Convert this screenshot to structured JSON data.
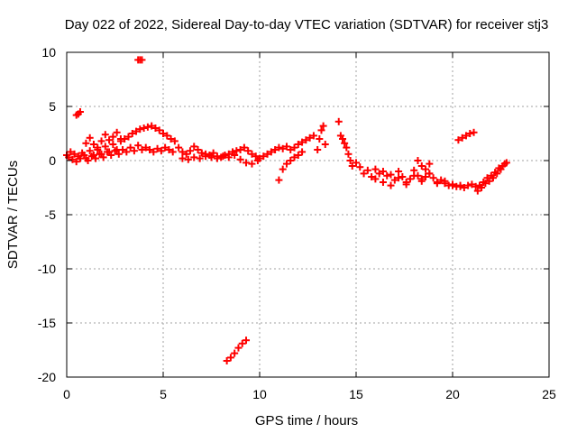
{
  "chart_data": {
    "type": "scatter",
    "title": "Day 022 of 2022, Sidereal Day-to-day VTEC variation (SDTVAR) for receiver stj3",
    "xlabel": "GPS time / hours",
    "ylabel": "SDTVAR / TECUs",
    "xlim": [
      0,
      25
    ],
    "ylim": [
      -20,
      10
    ],
    "xticks": [
      "0",
      "5",
      "10",
      "15",
      "20",
      "25"
    ],
    "yticks": [
      "10",
      "5",
      "0",
      "-5",
      "-10",
      "-15",
      "-20"
    ],
    "grid": true,
    "marker": "plus",
    "color": "#ff0000",
    "series": [
      {
        "name": "SDTVAR",
        "x": [
          0.0,
          0.2,
          0.4,
          0.6,
          0.8,
          1.0,
          1.2,
          1.4,
          1.6,
          1.8,
          2.0,
          2.2,
          2.4,
          2.6,
          2.8,
          3.0,
          3.2,
          3.4,
          3.6,
          3.8,
          4.0,
          4.2,
          4.4,
          4.6,
          4.8,
          5.0,
          5.2,
          5.4,
          5.6,
          0.1,
          0.3,
          0.5,
          0.7,
          0.9,
          1.1,
          1.3,
          1.5,
          1.7,
          1.9,
          2.1,
          2.3,
          2.5,
          2.7,
          2.9,
          3.1,
          3.3,
          3.5,
          3.7,
          3.9,
          4.1,
          4.3,
          4.5,
          4.7,
          4.9,
          5.1,
          5.3,
          5.5,
          1.0,
          1.2,
          1.4,
          1.6,
          1.8,
          2.0,
          2.2,
          2.4,
          2.6,
          2.8,
          0.5,
          0.6,
          0.7,
          3.7,
          3.8,
          3.9,
          5.8,
          6.0,
          6.2,
          6.4,
          6.6,
          6.8,
          7.0,
          7.2,
          7.4,
          7.6,
          7.8,
          8.0,
          8.2,
          8.4,
          8.6,
          8.8,
          9.0,
          9.2,
          9.4,
          9.6,
          9.8,
          10.0,
          6.0,
          6.3,
          6.6,
          6.9,
          7.2,
          7.5,
          7.8,
          8.1,
          8.4,
          8.7,
          9.0,
          9.3,
          9.6,
          9.9,
          8.3,
          8.5,
          8.7,
          8.9,
          9.1,
          9.3,
          10.2,
          10.4,
          10.6,
          10.8,
          11.0,
          11.2,
          11.4,
          11.6,
          11.8,
          12.0,
          12.2,
          12.4,
          12.6,
          12.8,
          11.0,
          11.2,
          11.4,
          11.6,
          11.8,
          12.0,
          12.2,
          13.0,
          13.1,
          13.2,
          13.3,
          13.4,
          14.1,
          14.2,
          14.3,
          14.4,
          14.5,
          14.6,
          14.7,
          14.8,
          15.0,
          15.2,
          15.4,
          15.6,
          15.8,
          16.0,
          16.2,
          16.4,
          16.6,
          16.8,
          17.0,
          17.2,
          17.4,
          17.6,
          17.8,
          18.0,
          18.2,
          18.4,
          18.6,
          18.8,
          19.0,
          19.2,
          19.4,
          19.6,
          19.8,
          20.0,
          20.2,
          20.4,
          20.6,
          20.8,
          21.0,
          21.2,
          16.0,
          16.4,
          16.8,
          17.2,
          17.6,
          18.0,
          18.4,
          18.8,
          19.2,
          19.6,
          20.0,
          20.4,
          18.2,
          18.4,
          18.6,
          18.8,
          20.3,
          20.5,
          20.7,
          20.9,
          21.1,
          21.3,
          21.5,
          21.7,
          21.9,
          22.1,
          22.3,
          22.5,
          22.7,
          21.4,
          21.6,
          21.8,
          22.0,
          22.2,
          22.4,
          22.6,
          22.8
        ],
        "y": [
          0.5,
          0.8,
          0.6,
          0.4,
          0.7,
          0.2,
          0.9,
          0.5,
          1.0,
          0.6,
          1.3,
          0.8,
          1.5,
          1.0,
          1.8,
          2.0,
          2.2,
          2.5,
          2.7,
          2.9,
          3.0,
          3.1,
          3.2,
          3.0,
          2.8,
          2.5,
          2.3,
          2.0,
          1.8,
          0.3,
          0.1,
          -0.1,
          0.2,
          0.5,
          0.0,
          0.4,
          0.2,
          0.6,
          0.3,
          0.8,
          0.5,
          0.9,
          0.6,
          1.0,
          0.8,
          1.2,
          0.9,
          1.4,
          1.0,
          1.2,
          1.0,
          0.8,
          1.1,
          0.9,
          1.2,
          1.0,
          0.8,
          1.6,
          2.1,
          1.5,
          1.2,
          1.8,
          2.4,
          1.9,
          2.2,
          2.6,
          2.0,
          4.2,
          4.3,
          4.5,
          9.3,
          9.3,
          9.3,
          1.2,
          0.8,
          0.6,
          0.9,
          1.3,
          1.0,
          0.7,
          0.6,
          0.5,
          0.7,
          0.4,
          0.3,
          0.5,
          0.6,
          0.8,
          0.9,
          1.0,
          1.2,
          0.9,
          0.6,
          0.4,
          0.2,
          0.2,
          0.1,
          0.3,
          0.2,
          0.4,
          0.3,
          0.2,
          0.4,
          0.3,
          0.5,
          0.1,
          -0.2,
          -0.3,
          0.0,
          -18.5,
          -18.2,
          -17.8,
          -17.3,
          -16.9,
          -16.6,
          0.4,
          0.6,
          0.8,
          1.0,
          1.2,
          1.1,
          1.3,
          1.0,
          1.2,
          1.5,
          1.7,
          1.9,
          2.1,
          2.3,
          -1.8,
          -0.8,
          -0.3,
          0.0,
          0.3,
          0.5,
          0.8,
          1.0,
          2.0,
          2.8,
          3.2,
          1.5,
          3.6,
          2.3,
          2.0,
          1.6,
          1.2,
          0.6,
          0.0,
          -0.5,
          -0.2,
          -0.6,
          -1.2,
          -0.9,
          -1.5,
          -1.7,
          -1.2,
          -2.0,
          -1.4,
          -2.3,
          -1.8,
          -1.0,
          -1.5,
          -2.2,
          -1.7,
          -0.9,
          -1.4,
          -1.9,
          -1.5,
          -1.2,
          -1.6,
          -2.0,
          -1.8,
          -2.1,
          -2.3,
          -2.2,
          -2.4,
          -2.3,
          -2.5,
          -2.3,
          -2.2,
          -2.4,
          -0.8,
          -1.0,
          -1.3,
          -1.6,
          -2.0,
          -1.4,
          -1.7,
          -1.2,
          -2.1,
          -1.9,
          -2.3,
          -2.4,
          0.0,
          -0.5,
          -0.8,
          -0.3,
          1.9,
          2.1,
          2.3,
          2.5,
          2.6,
          -2.8,
          -2.5,
          -2.1,
          -1.9,
          -1.6,
          -1.2,
          -0.8,
          -0.3,
          -2.3,
          -2.0,
          -1.6,
          -1.4,
          -1.1,
          -0.7,
          -0.5,
          -0.2
        ]
      }
    ]
  }
}
